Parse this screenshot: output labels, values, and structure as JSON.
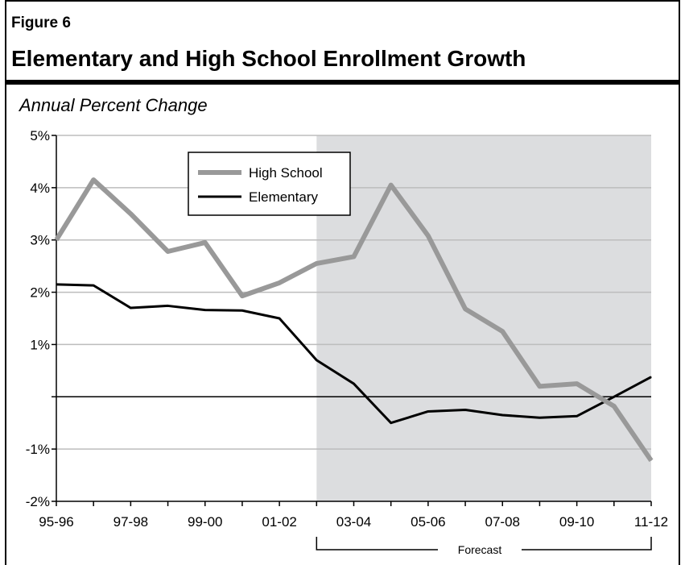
{
  "figure_label": "Figure 6",
  "title": "Elementary and High School Enrollment Growth",
  "subtitle": "Annual Percent Change",
  "forecast_label": "Forecast",
  "chart_data": {
    "type": "line",
    "title": "Elementary and High School Enrollment Growth",
    "ylabel": "Annual Percent Change",
    "xlabel": "",
    "x": [
      "95-96",
      "96-97",
      "97-98",
      "98-99",
      "99-00",
      "00-01",
      "01-02",
      "02-03",
      "03-04",
      "04-05",
      "05-06",
      "06-07",
      "07-08",
      "08-09",
      "09-10",
      "10-11",
      "11-12"
    ],
    "x_tick_labels": [
      "95-96",
      "97-98",
      "99-00",
      "01-02",
      "03-04",
      "05-06",
      "07-08",
      "09-10",
      "11-12"
    ],
    "y_tick_labels": [
      "5%",
      "4%",
      "3%",
      "2%",
      "1%",
      "-1%",
      "-2%"
    ],
    "y_ticks": [
      5,
      4,
      3,
      2,
      1,
      -1,
      -2
    ],
    "ylim": [
      -2,
      5
    ],
    "grid": true,
    "legend_position": "top-left inside plot",
    "forecast_start": "02-03",
    "forecast_end": "11-12",
    "series": [
      {
        "name": "High School",
        "color": "#999999",
        "values": [
          3.0,
          4.15,
          3.5,
          2.78,
          2.95,
          1.93,
          2.18,
          2.55,
          2.68,
          4.05,
          3.08,
          1.68,
          1.25,
          0.2,
          0.25,
          -0.18,
          -1.22
        ]
      },
      {
        "name": "Elementary",
        "color": "#000000",
        "values": [
          2.15,
          2.13,
          1.7,
          1.74,
          1.66,
          1.65,
          1.5,
          0.7,
          0.25,
          -0.5,
          -0.28,
          -0.25,
          -0.35,
          -0.4,
          -0.37,
          0.0,
          0.38
        ]
      }
    ]
  }
}
